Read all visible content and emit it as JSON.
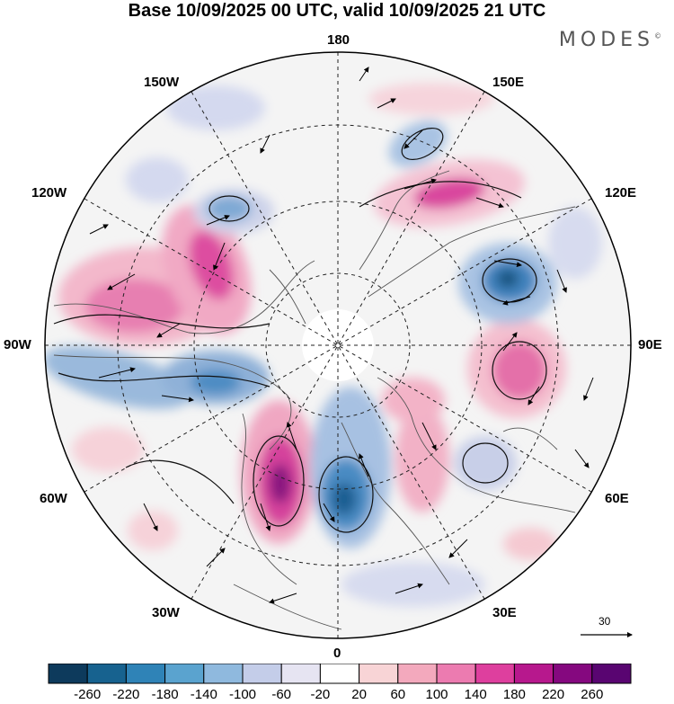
{
  "title": "Base 10/09/2025 00 UTC, valid 10/09/2025 21 UTC",
  "brand": "MODES",
  "brand_mark": "©",
  "longitude_labels": {
    "lon_180": "180",
    "lon_150e": "150E",
    "lon_120e": "120E",
    "lon_90e": "90E",
    "lon_60e": "60E",
    "lon_30e": "30E",
    "lon_0": "0",
    "lon_30w": "30W",
    "lon_60w": "60W",
    "lon_90w": "90W",
    "lon_120w": "120W",
    "lon_150w": "150W"
  },
  "vector_scale": {
    "label": "30"
  },
  "colorbar": {
    "labels": [
      "-260",
      "-220",
      "-180",
      "-140",
      "-100",
      "-60",
      "-20",
      "20",
      "60",
      "100",
      "140",
      "180",
      "220",
      "260"
    ],
    "colors": [
      "#0d3a5c",
      "#17628f",
      "#2f83b7",
      "#5aa3cf",
      "#8fb9de",
      "#c4cde9",
      "#e6e4f2",
      "#ffffff",
      "#f8d4d6",
      "#f3a9bd",
      "#ec7bb0",
      "#de3f9e",
      "#b7188d",
      "#85087f",
      "#590571"
    ]
  },
  "colors": {
    "neg_strong": "#2f6fa8",
    "neg_mid": "#7ea9d4",
    "neg_weak": "#cdd3ea",
    "pos_weak": "#f6d6dc",
    "pos_mid": "#eea3c2",
    "pos_strong": "#d9479e",
    "pos_max": "#8a1a8a"
  }
}
